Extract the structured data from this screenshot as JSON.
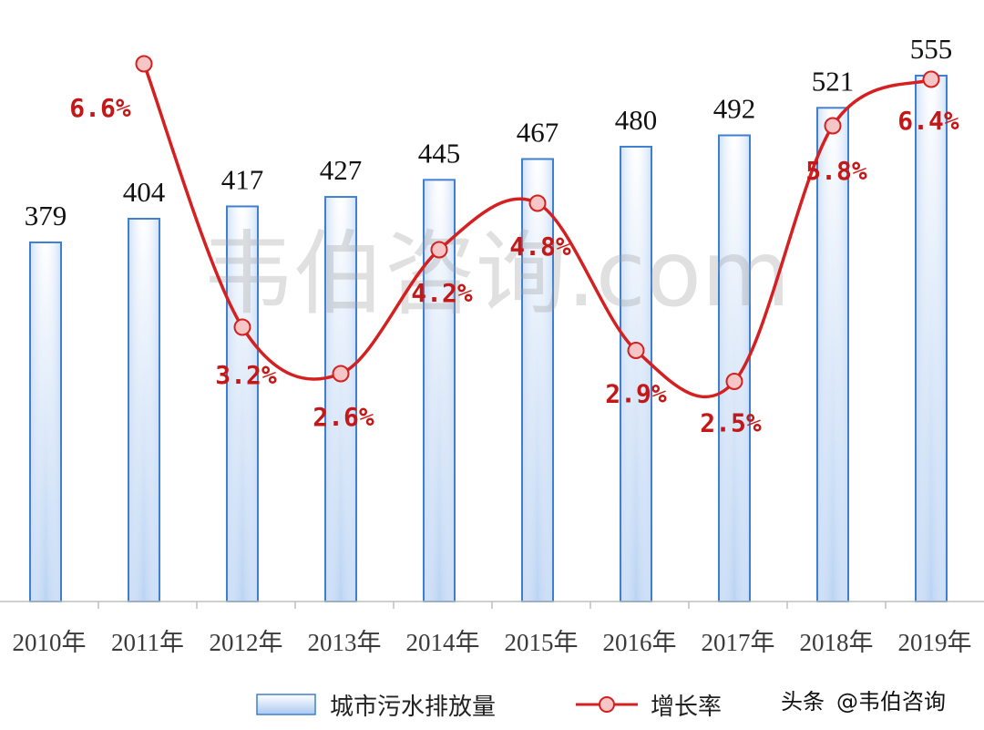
{
  "chart_data": {
    "type": "bar",
    "categories": [
      "2010年",
      "2011年",
      "2012年",
      "2013年",
      "2014年",
      "2015年",
      "2016年",
      "2017年",
      "2018年",
      "2019年"
    ],
    "series": [
      {
        "name": "城市污水排放量",
        "type": "bar",
        "values": [
          379,
          404,
          417,
          427,
          445,
          467,
          480,
          492,
          521,
          555
        ],
        "labels": [
          "379",
          "404",
          "417",
          "427",
          "445",
          "467",
          "480",
          "492",
          "521",
          "555"
        ]
      },
      {
        "name": "增长率",
        "type": "line",
        "values": [
          null,
          6.6,
          3.2,
          2.6,
          4.2,
          4.8,
          2.9,
          2.5,
          5.8,
          6.4
        ],
        "labels": [
          "",
          "6.6%",
          "3.2%",
          "2.6%",
          "4.2%",
          "4.8%",
          "2.9%",
          "2.5%",
          "5.8%",
          "6.4%"
        ]
      }
    ],
    "colors": {
      "bar_fill_top": "#ffffff",
      "bar_fill_bottom": "#a9c8f0",
      "bar_stroke": "#3f7fcf",
      "line": "#d42020",
      "marker_fill": "#f6c6c6",
      "label_red": "#c41818"
    },
    "legend_position": "bottom",
    "grid": false
  },
  "watermark": "韦伯咨询.com",
  "source": {
    "prefix": "头条",
    "handle": "@韦伯咨询"
  }
}
